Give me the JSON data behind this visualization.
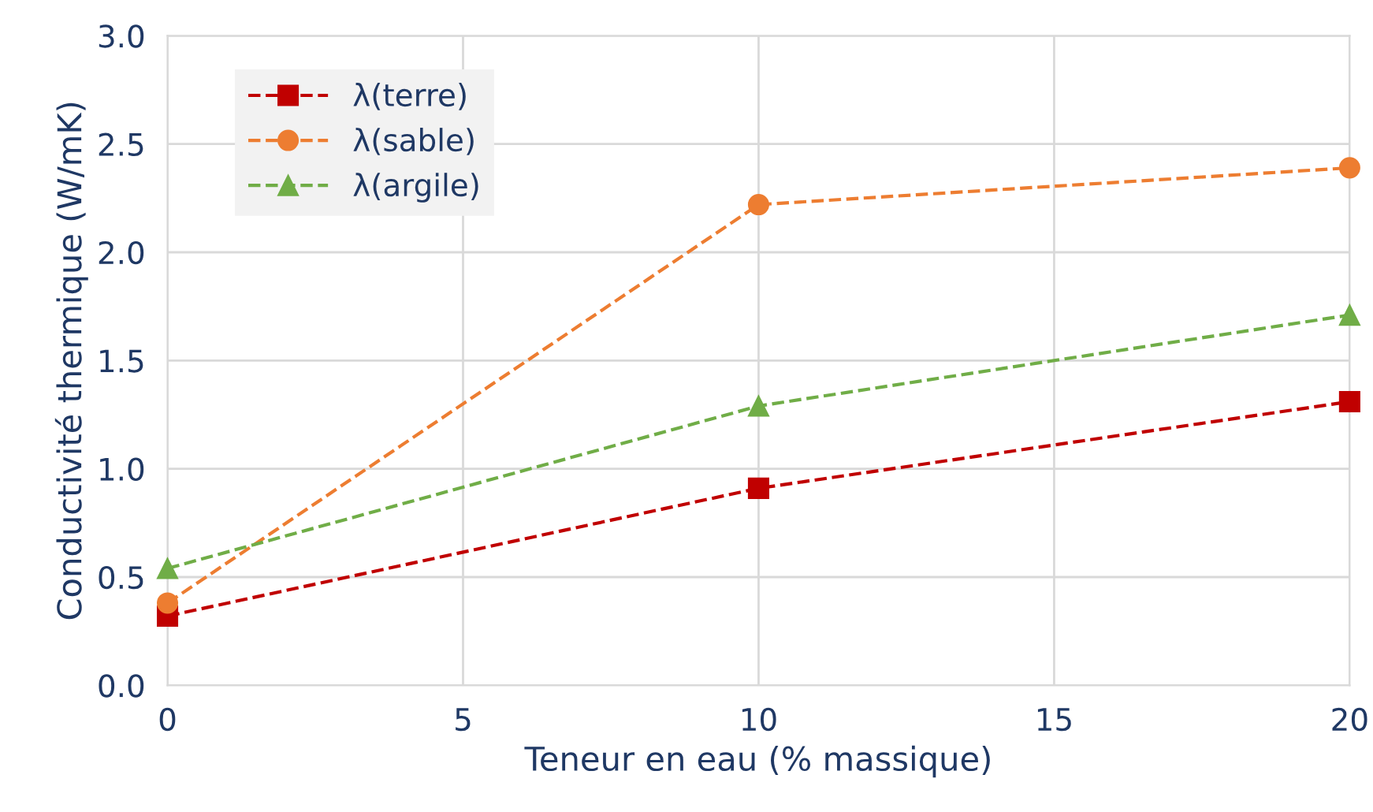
{
  "chart_data": {
    "type": "line",
    "xlabel": "Teneur en eau (% massique)",
    "ylabel": "Conductivité thermique (W/mK)",
    "xlim": [
      0,
      20
    ],
    "xticks": [
      0,
      5,
      10,
      15,
      20
    ],
    "ylim": [
      0,
      3.0
    ],
    "yticks": [
      {
        "value": 0,
        "label": "0.0"
      },
      {
        "value": 0.5,
        "label": "0.5"
      },
      {
        "value": 1.0,
        "label": "1.0"
      },
      {
        "value": 1.5,
        "label": "1.5"
      },
      {
        "value": 2.0,
        "label": "2.0"
      },
      {
        "value": 2.5,
        "label": "2.5"
      },
      {
        "value": 3.0,
        "label": "3.0"
      }
    ],
    "x": [
      0,
      10,
      20
    ],
    "grid": true,
    "legend": "top left",
    "line_style": "dashed",
    "series": [
      {
        "name": "λ(terre)",
        "color": "#c00000",
        "marker": "square",
        "values": [
          0.32,
          0.91,
          1.31
        ]
      },
      {
        "name": "λ(sable)",
        "color": "#ed7d31",
        "marker": "circle",
        "values": [
          0.38,
          2.22,
          2.39
        ]
      },
      {
        "name": "λ(argile)",
        "color": "#70ad47",
        "marker": "triangle",
        "values": [
          0.54,
          1.29,
          1.71
        ]
      }
    ]
  }
}
